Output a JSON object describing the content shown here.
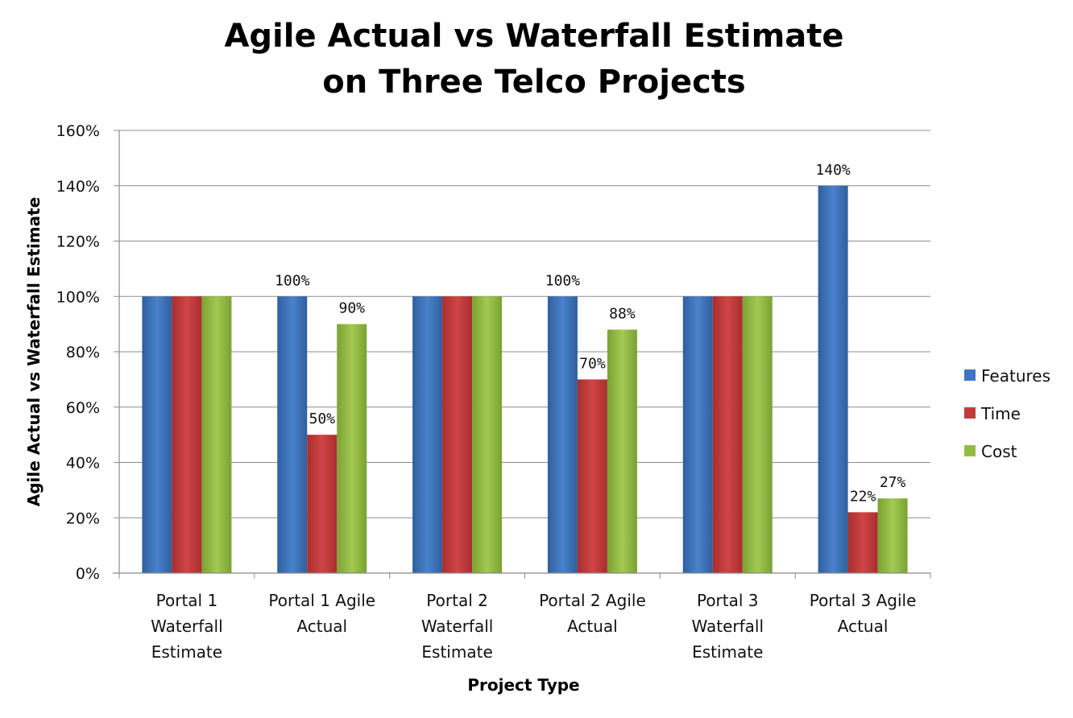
{
  "chart_data": {
    "type": "bar",
    "title": [
      "Agile Actual vs Waterfall Estimate",
      "on Three Telco Projects"
    ],
    "xlabel": "Project Type",
    "ylabel": "Agile Actual vs Waterfall Estimate",
    "ylim": [
      0,
      160
    ],
    "yticks": [
      0,
      20,
      40,
      60,
      80,
      100,
      120,
      140,
      160
    ],
    "ytick_suffix": "%",
    "grid": true,
    "legend_position": "right",
    "categories": [
      [
        "Portal 1",
        "Waterfall",
        "Estimate"
      ],
      [
        "Portal 1 Agile",
        "Actual"
      ],
      [
        "Portal 2",
        "Waterfall",
        "Estimate"
      ],
      [
        "Portal 2 Agile",
        "Actual"
      ],
      [
        "Portal 3",
        "Waterfall",
        "Estimate"
      ],
      [
        "Portal 3 Agile",
        "Actual"
      ]
    ],
    "series": [
      {
        "name": "Features",
        "color": "#3f75c0",
        "values": [
          100,
          100,
          100,
          100,
          100,
          140
        ],
        "labels": [
          null,
          "100%",
          null,
          "100%",
          null,
          "140%"
        ]
      },
      {
        "name": "Time",
        "color": "#c33b3b",
        "values": [
          100,
          50,
          100,
          70,
          100,
          22
        ],
        "labels": [
          null,
          "50%",
          null,
          "70%",
          null,
          "22%"
        ]
      },
      {
        "name": "Cost",
        "color": "#94bb44",
        "values": [
          100,
          90,
          100,
          88,
          100,
          27
        ],
        "labels": [
          null,
          "90%",
          null,
          "88%",
          null,
          "27%"
        ]
      }
    ]
  }
}
